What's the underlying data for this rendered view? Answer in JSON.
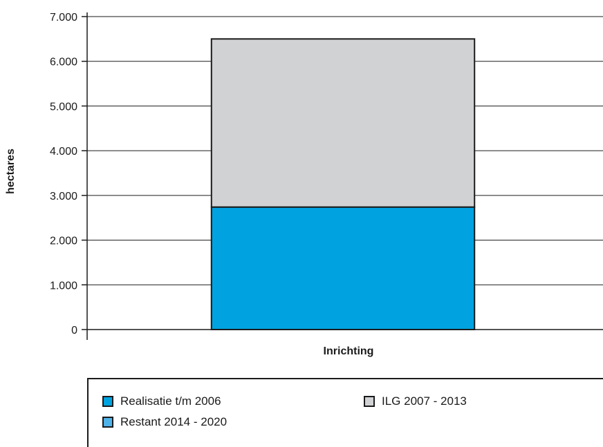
{
  "chart_data": {
    "type": "bar",
    "stacked": true,
    "categories": [
      "Inrichting"
    ],
    "xlabel": "Inrichting",
    "ylabel": "hectares",
    "ylim": [
      0,
      7000
    ],
    "yticks": [
      "0",
      "1.000",
      "2.000",
      "3.000",
      "4.000",
      "5.000",
      "6.000",
      "7.000"
    ],
    "ytick_values": [
      0,
      1000,
      2000,
      3000,
      4000,
      5000,
      6000,
      7000
    ],
    "grid": true,
    "legend_position": "bottom",
    "series": [
      {
        "name": "Realisatie t/m 2006",
        "values": [
          2740
        ],
        "color": "#00a3e0"
      },
      {
        "name": "ILG 2007 - 2013",
        "values": [
          3760
        ],
        "color": "#d1d2d4"
      },
      {
        "name": "Restant 2014  - 2020",
        "values": [
          0
        ],
        "color": "#4fb3e8"
      }
    ]
  }
}
